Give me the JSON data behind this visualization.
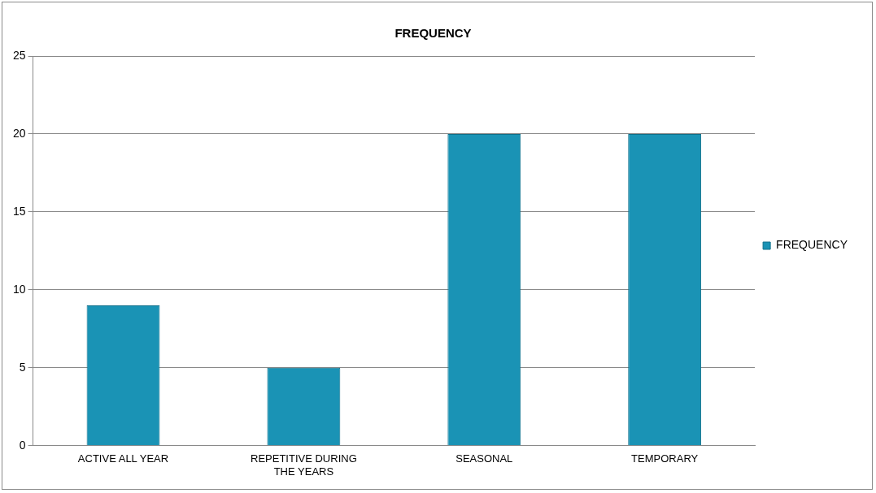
{
  "chart_data": {
    "type": "bar",
    "title": "FREQUENCY",
    "categories": [
      "ACTIVE ALL YEAR",
      "REPETITIVE DURING THE YEARS",
      "SEASONAL",
      "TEMPORARY"
    ],
    "series": [
      {
        "name": "FREQUENCY",
        "color": "#1a93b5",
        "values": [
          9,
          5,
          20,
          20
        ]
      }
    ],
    "ylim": [
      0,
      25
    ],
    "yticks": [
      0,
      5,
      10,
      15,
      20,
      25
    ],
    "grid": "y",
    "legend": "right"
  }
}
